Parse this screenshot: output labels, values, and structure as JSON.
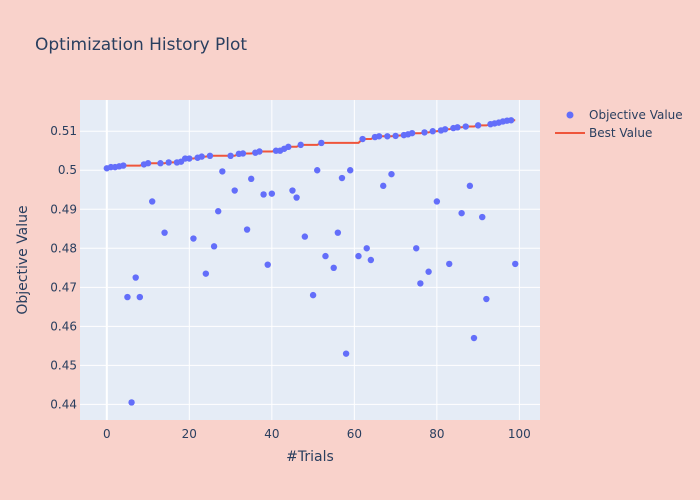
{
  "chart_data": {
    "type": "scatter",
    "title": "Optimization History Plot",
    "xlabel": "#Trials",
    "ylabel": "Objective Value",
    "xlim": [
      -6.5,
      105
    ],
    "ylim": [
      0.436,
      0.518
    ],
    "xticks": [
      0,
      20,
      40,
      60,
      80,
      100
    ],
    "xtick_labels": [
      "0",
      "20",
      "40",
      "60",
      "80",
      "100"
    ],
    "yticks": [
      0.44,
      0.45,
      0.46,
      0.47,
      0.48,
      0.49,
      0.5,
      0.51
    ],
    "ytick_labels": [
      "0.44",
      "0.45",
      "0.46",
      "0.47",
      "0.48",
      "0.49",
      "0.5",
      "0.51"
    ],
    "grid": true,
    "legend_position": "top-right",
    "colors": {
      "paper": "#f9d2cb",
      "plot": "#e5ecf6",
      "grid": "#ffffff",
      "objective": "#636efa",
      "best": "#ef553b"
    },
    "series": [
      {
        "name": "Objective Value",
        "mode": "markers",
        "x": [
          0,
          1,
          2,
          3,
          4,
          5,
          6,
          7,
          8,
          9,
          10,
          11,
          13,
          14,
          15,
          17,
          18,
          19,
          20,
          21,
          22,
          23,
          24,
          25,
          26,
          27,
          28,
          30,
          31,
          32,
          33,
          34,
          35,
          36,
          37,
          38,
          39,
          40,
          41,
          42,
          43,
          44,
          45,
          46,
          47,
          48,
          50,
          51,
          52,
          53,
          55,
          56,
          57,
          58,
          59,
          61,
          62,
          63,
          64,
          65,
          66,
          67,
          68,
          69,
          70,
          72,
          73,
          74,
          75,
          76,
          77,
          78,
          79,
          80,
          81,
          82,
          83,
          84,
          85,
          86,
          87,
          88,
          89,
          90,
          91,
          92,
          93,
          94,
          95,
          96,
          97,
          98,
          99
        ],
        "y": [
          0.5005,
          0.5008,
          0.5008,
          0.501,
          0.5012,
          0.4675,
          0.4405,
          0.4725,
          0.4675,
          0.5015,
          0.5018,
          0.492,
          0.5018,
          0.484,
          0.502,
          0.502,
          0.5022,
          0.503,
          0.503,
          0.4825,
          0.5032,
          0.5035,
          0.4735,
          0.5037,
          0.4805,
          0.4895,
          0.4997,
          0.5037,
          0.4948,
          0.5042,
          0.5043,
          0.4848,
          0.4978,
          0.5045,
          0.5048,
          0.4938,
          0.4758,
          0.494,
          0.505,
          0.505,
          0.5055,
          0.506,
          0.4948,
          0.493,
          0.5065,
          0.483,
          0.468,
          0.5,
          0.507,
          0.478,
          0.475,
          0.484,
          0.498,
          0.453,
          0.5,
          0.478,
          0.508,
          0.48,
          0.477,
          0.5085,
          0.5087,
          0.496,
          0.5087,
          0.499,
          0.5088,
          0.509,
          0.5092,
          0.5095,
          0.48,
          0.471,
          0.5097,
          0.474,
          0.51,
          0.492,
          0.5102,
          0.5105,
          0.476,
          0.5108,
          0.511,
          0.489,
          0.5112,
          0.496,
          0.457,
          0.5115,
          0.488,
          0.467,
          0.5118,
          0.512,
          0.5122,
          0.5125,
          0.5127,
          0.5128,
          0.476
        ]
      },
      {
        "name": "Best Value",
        "mode": "line",
        "x": [
          0,
          1,
          2,
          3,
          4,
          5,
          6,
          7,
          8,
          9,
          10,
          11,
          13,
          14,
          15,
          17,
          18,
          19,
          20,
          21,
          22,
          23,
          24,
          25,
          26,
          27,
          28,
          30,
          31,
          32,
          33,
          34,
          35,
          36,
          37,
          38,
          39,
          40,
          41,
          42,
          43,
          44,
          45,
          46,
          47,
          48,
          50,
          51,
          52,
          53,
          55,
          56,
          57,
          58,
          59,
          61,
          62,
          63,
          64,
          65,
          66,
          67,
          68,
          69,
          70,
          72,
          73,
          74,
          75,
          76,
          77,
          78,
          79,
          80,
          81,
          82,
          83,
          84,
          85,
          86,
          87,
          88,
          89,
          90,
          91,
          92,
          93,
          94,
          95,
          96,
          97,
          98,
          99
        ],
        "y": [
          0.5005,
          0.5008,
          0.5008,
          0.501,
          0.5012,
          0.5012,
          0.5012,
          0.5012,
          0.5012,
          0.5015,
          0.5018,
          0.5018,
          0.5018,
          0.5018,
          0.502,
          0.502,
          0.5022,
          0.503,
          0.503,
          0.503,
          0.5032,
          0.5035,
          0.5035,
          0.5037,
          0.5037,
          0.5037,
          0.5037,
          0.5037,
          0.5037,
          0.5042,
          0.5043,
          0.5043,
          0.5043,
          0.5045,
          0.5048,
          0.5048,
          0.5048,
          0.5048,
          0.505,
          0.505,
          0.5055,
          0.506,
          0.506,
          0.506,
          0.5065,
          0.5065,
          0.5065,
          0.5065,
          0.507,
          0.507,
          0.507,
          0.507,
          0.507,
          0.507,
          0.507,
          0.507,
          0.508,
          0.508,
          0.508,
          0.5085,
          0.5087,
          0.5087,
          0.5087,
          0.5087,
          0.5088,
          0.509,
          0.5092,
          0.5095,
          0.5095,
          0.5095,
          0.5097,
          0.5097,
          0.51,
          0.51,
          0.5102,
          0.5105,
          0.5105,
          0.5108,
          0.511,
          0.511,
          0.5112,
          0.5112,
          0.5112,
          0.5115,
          0.5115,
          0.5115,
          0.5118,
          0.512,
          0.5122,
          0.5125,
          0.5127,
          0.5128,
          0.5128
        ]
      }
    ]
  }
}
